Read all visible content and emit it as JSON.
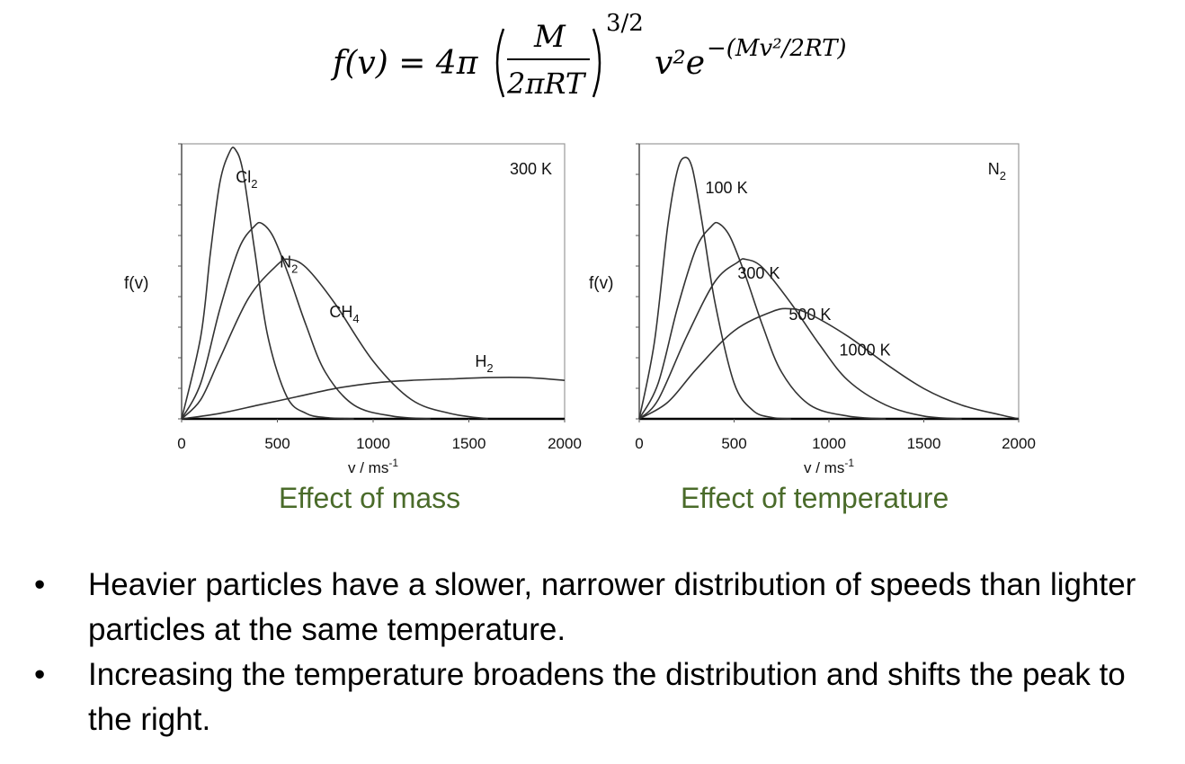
{
  "formula": {
    "lhs": "f(v) = 4π",
    "frac_num": "M",
    "frac_den": "2πRT",
    "exponent": "3/2",
    "factor": "v²e",
    "exp_term": "−(Mv²/2RT)"
  },
  "chart_data": [
    {
      "type": "line",
      "title": "",
      "caption": "Effect of mass",
      "annotation": "300 K",
      "xlabel": "v / ms-1",
      "ylabel": "f(v)",
      "xlim": [
        0,
        2000
      ],
      "ylim": [
        0,
        1
      ],
      "xticks": [
        "0",
        "500",
        "1000",
        "1500",
        "2000"
      ],
      "series": [
        {
          "name": "Cl2",
          "label_at": [
            340,
            0.86
          ],
          "x": [
            0,
            100,
            150,
            200,
            250,
            280,
            320,
            380,
            450,
            550,
            650,
            750,
            900
          ],
          "y": [
            0,
            0.3,
            0.6,
            0.86,
            0.97,
            0.98,
            0.9,
            0.62,
            0.3,
            0.08,
            0.02,
            0.005,
            0
          ]
        },
        {
          "name": "N2",
          "label_at": [
            560,
            0.55
          ],
          "x": [
            0,
            100,
            200,
            300,
            380,
            420,
            480,
            560,
            650,
            750,
            900,
            1100,
            1300
          ],
          "y": [
            0,
            0.13,
            0.4,
            0.62,
            0.7,
            0.71,
            0.66,
            0.52,
            0.34,
            0.17,
            0.05,
            0.01,
            0
          ]
        },
        {
          "name": "CH4",
          "label_at": [
            850,
            0.37
          ],
          "x": [
            0,
            100,
            200,
            350,
            500,
            560,
            650,
            800,
            1000,
            1200,
            1400,
            1600
          ],
          "y": [
            0,
            0.07,
            0.22,
            0.44,
            0.56,
            0.58,
            0.55,
            0.42,
            0.21,
            0.07,
            0.02,
            0
          ]
        },
        {
          "name": "H2",
          "label_at": [
            1580,
            0.19
          ],
          "x": [
            0,
            200,
            400,
            600,
            800,
            1000,
            1200,
            1400,
            1600,
            1800,
            2000
          ],
          "y": [
            0,
            0.02,
            0.05,
            0.08,
            0.11,
            0.13,
            0.14,
            0.145,
            0.15,
            0.15,
            0.14
          ]
        }
      ]
    },
    {
      "type": "line",
      "title": "",
      "caption": "Effect of temperature",
      "annotation": "N2",
      "xlabel": "v / ms-1",
      "ylabel": "f(v)",
      "xlim": [
        0,
        2000
      ],
      "ylim": [
        0,
        1
      ],
      "xticks": [
        "0",
        "500",
        "1000",
        "1500",
        "2000"
      ],
      "series": [
        {
          "name": "100 K",
          "label_at": [
            460,
            0.82
          ],
          "x": [
            0,
            80,
            150,
            200,
            240,
            280,
            330,
            400,
            500,
            600,
            700,
            800
          ],
          "y": [
            0,
            0.28,
            0.7,
            0.9,
            0.95,
            0.91,
            0.72,
            0.42,
            0.13,
            0.03,
            0.005,
            0
          ]
        },
        {
          "name": "300 K",
          "label_at": [
            630,
            0.51
          ],
          "x": [
            0,
            100,
            200,
            300,
            380,
            420,
            480,
            560,
            650,
            750,
            900,
            1100,
            1300
          ],
          "y": [
            0,
            0.13,
            0.4,
            0.62,
            0.7,
            0.71,
            0.66,
            0.52,
            0.34,
            0.17,
            0.05,
            0.01,
            0
          ]
        },
        {
          "name": "500 K",
          "label_at": [
            900,
            0.36
          ],
          "x": [
            0,
            100,
            250,
            400,
            520,
            560,
            650,
            800,
            950,
            1100,
            1300,
            1500,
            1700
          ],
          "y": [
            0,
            0.07,
            0.3,
            0.5,
            0.57,
            0.58,
            0.55,
            0.42,
            0.27,
            0.14,
            0.05,
            0.01,
            0
          ]
        },
        {
          "name": "1000 K",
          "label_at": [
            1190,
            0.23
          ],
          "x": [
            0,
            150,
            300,
            500,
            700,
            800,
            900,
            1100,
            1300,
            1500,
            1700,
            1900,
            2000
          ],
          "y": [
            0,
            0.06,
            0.18,
            0.32,
            0.39,
            0.4,
            0.38,
            0.3,
            0.2,
            0.11,
            0.05,
            0.015,
            0
          ]
        }
      ]
    }
  ],
  "bullets": [
    {
      "dot": "•",
      "text": "Heavier particles have a slower, narrower distribution of speeds than lighter particles at the same temperature."
    },
    {
      "dot": "•",
      "text": "Increasing the temperature broadens the distribution and shifts the peak to the right."
    }
  ]
}
